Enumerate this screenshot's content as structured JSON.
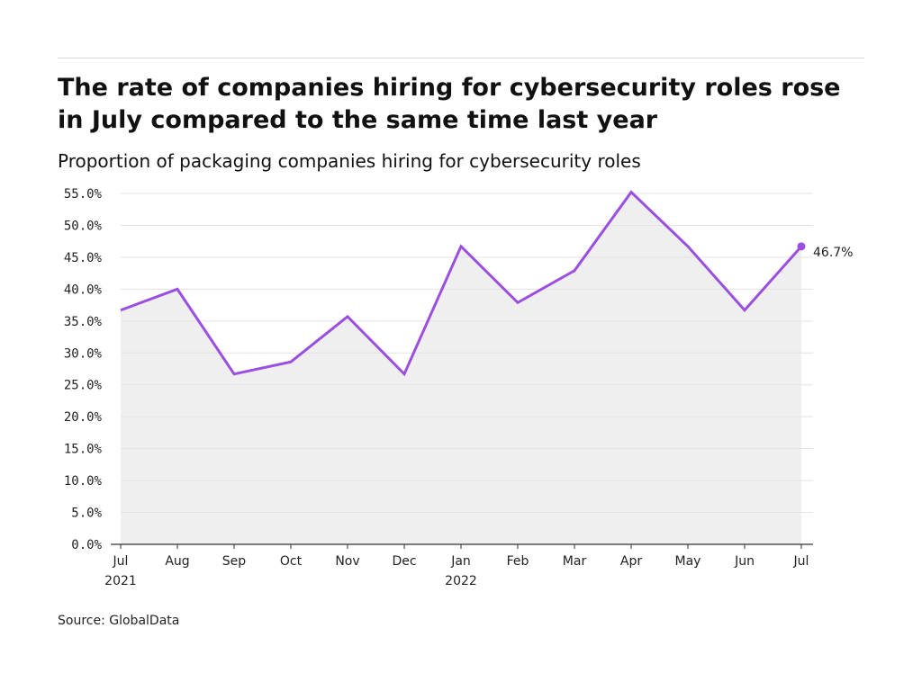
{
  "title": "The rate of companies hiring for cybersecurity roles rose in July compared to the same time last year",
  "subtitle": "Proportion of packaging companies hiring for cybersecurity roles",
  "source": "Source: GlobalData",
  "colors": {
    "line": "#9b4fe0",
    "area": "#efefef",
    "grid": "#e3e3e3",
    "axis": "#333333"
  },
  "chart_data": {
    "type": "area",
    "title": "The rate of companies hiring for cybersecurity roles rose in July compared to the same time last year",
    "subtitle": "Proportion of packaging companies hiring for cybersecurity roles",
    "categories": [
      "Jul 2021",
      "Aug 2021",
      "Sep 2021",
      "Oct 2021",
      "Nov 2021",
      "Dec 2021",
      "Jan 2022",
      "Feb 2022",
      "Mar 2022",
      "Apr 2022",
      "May 2022",
      "Jun 2022",
      "Jul 2022"
    ],
    "x_tick_labels": [
      [
        "Jul",
        "2021"
      ],
      [
        "Aug"
      ],
      [
        "Sep"
      ],
      [
        "Oct"
      ],
      [
        "Nov"
      ],
      [
        "Dec"
      ],
      [
        "Jan",
        "2022"
      ],
      [
        "Feb"
      ],
      [
        "Mar"
      ],
      [
        "Apr"
      ],
      [
        "May"
      ],
      [
        "Jun"
      ],
      [
        "Jul"
      ]
    ],
    "values": [
      36.7,
      40.0,
      26.7,
      28.6,
      35.7,
      26.7,
      46.7,
      37.9,
      42.9,
      55.2,
      46.7,
      36.7,
      46.7
    ],
    "ylim": [
      0,
      55
    ],
    "y_ticks": [
      "0.0%",
      "5.0%",
      "10.0%",
      "15.0%",
      "20.0%",
      "25.0%",
      "30.0%",
      "35.0%",
      "40.0%",
      "45.0%",
      "50.0%",
      "55.0%"
    ],
    "xlabel": "",
    "ylabel": "",
    "last_value_label": "46.7%",
    "grid": true
  }
}
